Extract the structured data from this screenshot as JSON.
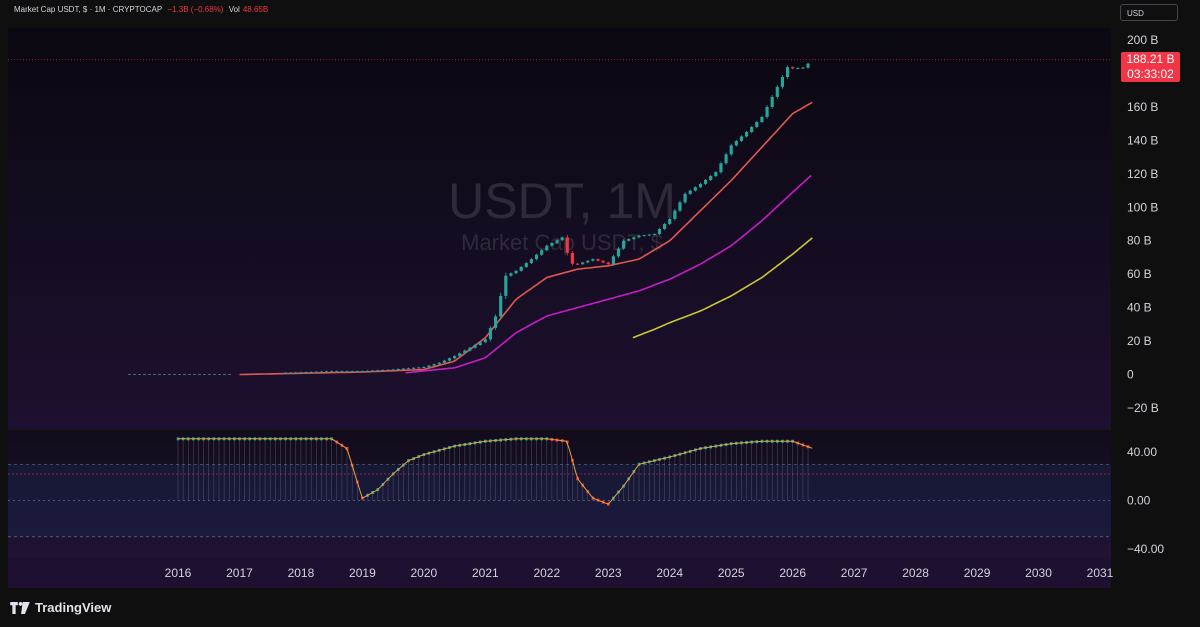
{
  "header": {
    "symbol": "Market Cap USDT, $ · 1M · CRYPTOCAP",
    "change": "−1.3B (−0.68%)",
    "vol_label": "Vol",
    "vol_value": "48.65B"
  },
  "currency_button": "USD",
  "price_tag": {
    "price": "188.21 B",
    "countdown": "03:33:02"
  },
  "watermark": {
    "title": "USDT, 1M",
    "subtitle": "Market Cap USDT, $"
  },
  "footer": {
    "brand": "TradingView"
  },
  "colors": {
    "up": "#26a69a",
    "down": "#f23645",
    "ma_fast": "#e0594f",
    "ma_mid": "#c21fc7",
    "ma_slow": "#c9c832",
    "osc_line": "#e8a33b"
  },
  "chart_data": {
    "type": "line",
    "title": "Market Cap USDT, $ · 1M · CRYPTOCAP",
    "y_axis_labels": [
      "200 B",
      "160 B",
      "140 B",
      "120 B",
      "100 B",
      "80 B",
      "60 B",
      "40 B",
      "20 B",
      "0",
      "−20 B"
    ],
    "x_axis_labels": [
      "2016",
      "2017",
      "2018",
      "2019",
      "2020",
      "2021",
      "2022",
      "2023",
      "2024",
      "2025",
      "2026",
      "2027",
      "2028",
      "2029",
      "2030",
      "2031"
    ],
    "ylim": [
      -26,
      206
    ],
    "last_price": 188.21,
    "price_series": {
      "name": "USDT market cap (B)",
      "x": [
        2016.0,
        2017.0,
        2018.0,
        2018.5,
        2019.0,
        2019.5,
        2020.0,
        2020.25,
        2020.5,
        2020.75,
        2021.0,
        2021.17,
        2021.33,
        2021.5,
        2021.75,
        2022.0,
        2022.25,
        2022.33,
        2022.42,
        2022.5,
        2022.75,
        2023.0,
        2023.25,
        2023.5,
        2023.75,
        2024.0,
        2024.25,
        2024.5,
        2024.75,
        2025.0,
        2025.25,
        2025.5,
        2025.75,
        2025.92,
        2026.0,
        2026.17,
        2026.33
      ],
      "y": [
        0.0,
        0.1,
        1.3,
        2.0,
        2.0,
        3.0,
        4.5,
        7.0,
        11.0,
        16.0,
        21.0,
        35.0,
        59.0,
        62.0,
        69.0,
        77.0,
        82.0,
        73.0,
        66.0,
        66.0,
        69.0,
        66.0,
        80.0,
        83.0,
        84.0,
        93.0,
        108.0,
        114.0,
        121.0,
        137.0,
        145.0,
        154.0,
        172.0,
        184.0,
        183.0,
        183.5,
        188.21
      ]
    },
    "ma_fast": {
      "x": [
        2017.0,
        2019.0,
        2020.0,
        2020.5,
        2021.0,
        2021.5,
        2022.0,
        2022.5,
        2023.0,
        2023.5,
        2024.0,
        2024.5,
        2025.0,
        2025.5,
        2026.0,
        2026.33
      ],
      "y": [
        0.0,
        1.5,
        3.0,
        8.0,
        22.0,
        45.0,
        58.0,
        63.0,
        65.0,
        69.0,
        80.0,
        98.0,
        116.0,
        136.0,
        156.0,
        163.0
      ]
    },
    "ma_mid": {
      "x": [
        2019.7,
        2020.5,
        2021.0,
        2021.5,
        2022.0,
        2022.5,
        2023.0,
        2023.5,
        2024.0,
        2024.5,
        2025.0,
        2025.5,
        2026.0,
        2026.33
      ],
      "y": [
        1.0,
        4.0,
        10.0,
        25.0,
        35.0,
        40.0,
        45.0,
        50.0,
        57.0,
        66.0,
        77.0,
        92.0,
        109.0,
        120.0
      ]
    },
    "ma_slow": {
      "x": [
        2023.4,
        2023.75,
        2024.0,
        2024.5,
        2025.0,
        2025.5,
        2026.0,
        2026.33
      ],
      "y": [
        22.0,
        27.0,
        31.0,
        38.0,
        47.0,
        58.0,
        72.0,
        82.0
      ]
    },
    "oscillator": {
      "y_axis_labels": [
        "40.00",
        "0.00",
        "−40.00"
      ],
      "ylim": [
        -45,
        55
      ],
      "x": [
        2016.0,
        2018.5,
        2018.75,
        2018.9,
        2019.0,
        2019.25,
        2019.5,
        2019.75,
        2020.0,
        2020.5,
        2021.0,
        2021.5,
        2022.0,
        2022.33,
        2022.5,
        2022.75,
        2023.0,
        2023.25,
        2023.5,
        2024.0,
        2024.5,
        2025.0,
        2025.5,
        2026.0,
        2026.33
      ],
      "y": [
        51.0,
        51.0,
        43.0,
        18.0,
        2.0,
        9.0,
        22.0,
        33.0,
        38.0,
        45.0,
        49.0,
        51.0,
        51.0,
        49.0,
        18.0,
        2.0,
        -3.0,
        12.0,
        30.0,
        36.0,
        43.0,
        47.0,
        49.0,
        49.0,
        43.0
      ]
    }
  }
}
